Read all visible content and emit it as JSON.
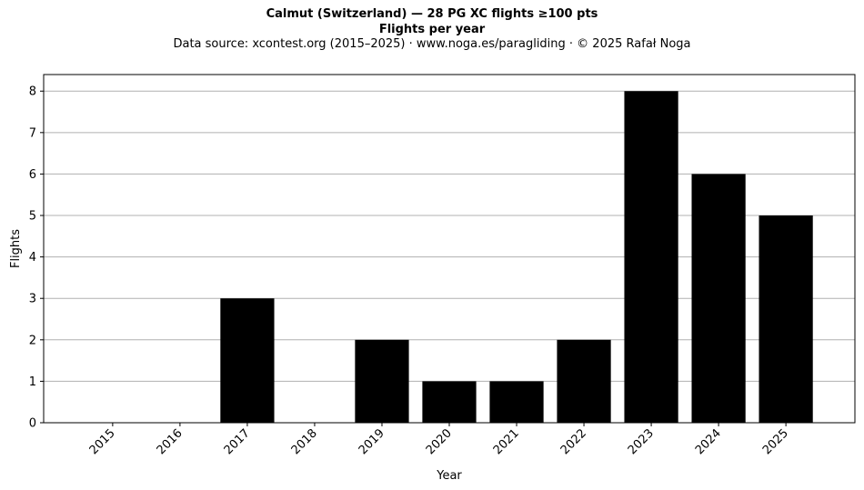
{
  "header": {
    "title": "Calmut (Switzerland)  —  28 PG XC flights ≥100 pts",
    "subtitle": "Flights per year",
    "source": "Data source: xcontest.org (2015–2025)  ·  www.noga.es/paragliding  ·  © 2025 Rafał Noga"
  },
  "chart_data": {
    "type": "bar",
    "categories": [
      "2015",
      "2016",
      "2017",
      "2018",
      "2019",
      "2020",
      "2021",
      "2022",
      "2023",
      "2024",
      "2025"
    ],
    "values": [
      0,
      0,
      3,
      0,
      2,
      1,
      1,
      2,
      8,
      6,
      5
    ],
    "xlabel": "Year",
    "ylabel": "Flights",
    "ylim": [
      0,
      8.4
    ],
    "yticks": [
      0,
      1,
      2,
      3,
      4,
      5,
      6,
      7,
      8
    ],
    "grid": "horizontal",
    "bar_color": "#000000",
    "grid_color": "#b0b0b0",
    "x_tick_rotation": -45
  }
}
